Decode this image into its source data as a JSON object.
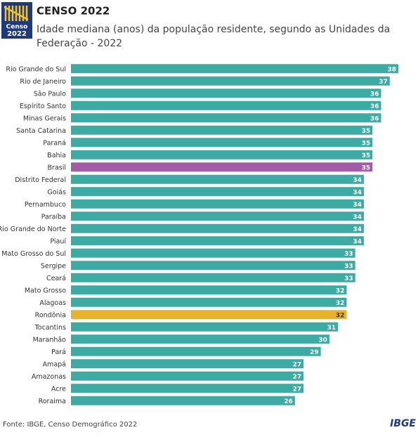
{
  "logo": {
    "top": "Censo",
    "bottom": "2022"
  },
  "brand": "IBGE",
  "chart_data": {
    "type": "bar",
    "orientation": "horizontal",
    "title": "CENSO 2022",
    "subtitle": [
      "Idade mediana (anos) da população residente, segundo as Unidades da",
      "Federação - 2022"
    ],
    "source": "Fonte: IBGE, Censo Demográfico 2022",
    "categories": [
      "Rio Grande do Sul",
      "Rio de Janeiro",
      "São Paulo",
      "Espírito Santo",
      "Minas Gerais",
      "Santa Catarina",
      "Paraná",
      "Bahia",
      "Brasil",
      "Distrito Federal",
      "Goiás",
      "Pernambuco",
      "Paraíba",
      "Rio Grande do Norte",
      "Piauí",
      "Mato Grosso do Sul",
      "Sergipe",
      "Ceará",
      "Mato Grosso",
      "Alagoas",
      "Rondônia",
      "Tocantins",
      "Maranhão",
      "Pará",
      "Amapá",
      "Amazonas",
      "Acre",
      "Roraima"
    ],
    "values": [
      38,
      37,
      36,
      36,
      36,
      35,
      35,
      35,
      35,
      34,
      34,
      34,
      34,
      34,
      34,
      33,
      33,
      33,
      32,
      32,
      32,
      31,
      30,
      29,
      27,
      27,
      27,
      26
    ],
    "colors": [
      "#3daaa3",
      "#3daaa3",
      "#3daaa3",
      "#3daaa3",
      "#3daaa3",
      "#3daaa3",
      "#3daaa3",
      "#3daaa3",
      "#a35ba8",
      "#3daaa3",
      "#3daaa3",
      "#3daaa3",
      "#3daaa3",
      "#3daaa3",
      "#3daaa3",
      "#3daaa3",
      "#3daaa3",
      "#3daaa3",
      "#3daaa3",
      "#3daaa3",
      "#e9b22d",
      "#3daaa3",
      "#3daaa3",
      "#3daaa3",
      "#3daaa3",
      "#3daaa3",
      "#3daaa3",
      "#3daaa3"
    ],
    "xlim": [
      0,
      38
    ]
  }
}
